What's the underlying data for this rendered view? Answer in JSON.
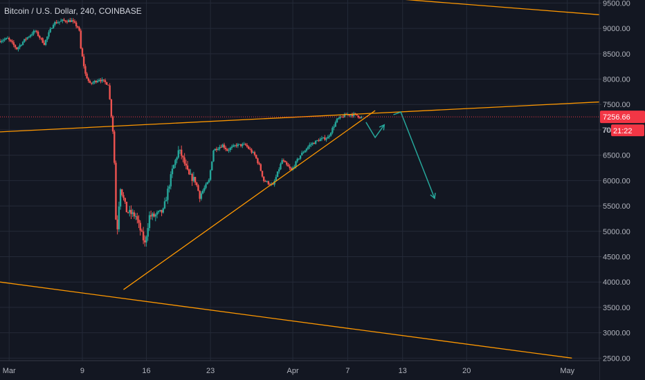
{
  "chart_data": {
    "type": "candlestick",
    "title": "Bitcoin / U.S. Dollar, 240, COINBASE",
    "ylim": [
      2450,
      9560
    ],
    "y_ticks": [
      9500,
      9000,
      8500,
      8000,
      7500,
      7000,
      6500,
      6000,
      5500,
      5000,
      4500,
      4000,
      3500,
      3000,
      2500
    ],
    "y_tick_labels": [
      "9500.00",
      "9000.00",
      "8500.00",
      "8000.00",
      "7500.00",
      "7000.00",
      "6500.00",
      "6000.00",
      "5500.00",
      "5000.00",
      "4500.00",
      "4000.00",
      "3500.00",
      "3000.00",
      "2500.00"
    ],
    "x_range_days": [
      0,
      65.5
    ],
    "x_ticks": [
      {
        "label": "Mar",
        "day": 1
      },
      {
        "label": "9",
        "day": 9
      },
      {
        "label": "16",
        "day": 16
      },
      {
        "label": "23",
        "day": 23
      },
      {
        "label": "Apr",
        "day": 32
      },
      {
        "label": "7",
        "day": 38
      },
      {
        "label": "13",
        "day": 44
      },
      {
        "label": "20",
        "day": 51
      },
      {
        "label": "May",
        "day": 62
      }
    ],
    "price_path": [
      [
        0,
        8750
      ],
      [
        1,
        8800
      ],
      [
        2,
        8600
      ],
      [
        3,
        8800
      ],
      [
        4,
        8950
      ],
      [
        5,
        8700
      ],
      [
        6,
        9100
      ],
      [
        7,
        9150
      ],
      [
        8,
        9150
      ],
      [
        8.8,
        9000
      ],
      [
        9,
        8600
      ],
      [
        9.5,
        8100
      ],
      [
        10,
        7900
      ],
      [
        11,
        8000
      ],
      [
        12,
        7900
      ],
      [
        12.6,
        6800
      ],
      [
        12.9,
        4800
      ],
      [
        13.3,
        5900
      ],
      [
        14,
        5400
      ],
      [
        15,
        5300
      ],
      [
        16,
        4750
      ],
      [
        16.5,
        5300
      ],
      [
        17,
        5300
      ],
      [
        18,
        5400
      ],
      [
        18.5,
        5800
      ],
      [
        19,
        6200
      ],
      [
        19.7,
        6600
      ],
      [
        20,
        6500
      ],
      [
        20.8,
        6100
      ],
      [
        21.5,
        6000
      ],
      [
        22,
        5700
      ],
      [
        23,
        6000
      ],
      [
        23.5,
        6600
      ],
      [
        24.5,
        6700
      ],
      [
        25,
        6600
      ],
      [
        26,
        6700
      ],
      [
        27,
        6700
      ],
      [
        28,
        6500
      ],
      [
        28.5,
        6300
      ],
      [
        29,
        6000
      ],
      [
        30,
        5900
      ],
      [
        31,
        6400
      ],
      [
        32,
        6200
      ],
      [
        33,
        6500
      ],
      [
        34,
        6700
      ],
      [
        35,
        6800
      ],
      [
        36,
        6850
      ],
      [
        37,
        7200
      ],
      [
        38,
        7300
      ],
      [
        39,
        7300
      ],
      [
        39.5,
        7256
      ]
    ],
    "current_price": 7256.66,
    "current_price_label": "7256.66",
    "countdown_label": "21:22",
    "partial_axis_label": "70",
    "trendlines": [
      {
        "p1": [
          0,
          6960
        ],
        "p2": [
          65.5,
          7550
        ],
        "color": "#ff9800"
      },
      {
        "p1": [
          13.5,
          3850
        ],
        "p2": [
          41,
          7380
        ],
        "color": "#ff9800"
      },
      {
        "p1": [
          0,
          4000
        ],
        "p2": [
          62.5,
          2500
        ],
        "color": "#ff9800"
      },
      {
        "p1": [
          43.5,
          9580
        ],
        "p2": [
          65.5,
          9270
        ],
        "color": "#ff9800"
      }
    ],
    "projections": [
      {
        "points": [
          [
            40,
            7150
          ],
          [
            41,
            6850
          ],
          [
            42,
            7100
          ]
        ],
        "color": "#26a69a"
      },
      {
        "points": [
          [
            43,
            7300
          ],
          [
            43.8,
            7350
          ],
          [
            47.5,
            5650
          ]
        ],
        "color": "#26a69a"
      }
    ],
    "colors": {
      "background": "#131722",
      "up": "#26a69a",
      "down": "#ef5350",
      "grid": "#242a38",
      "trendline": "#ff9800",
      "price_label_bg": "#f23645"
    }
  }
}
